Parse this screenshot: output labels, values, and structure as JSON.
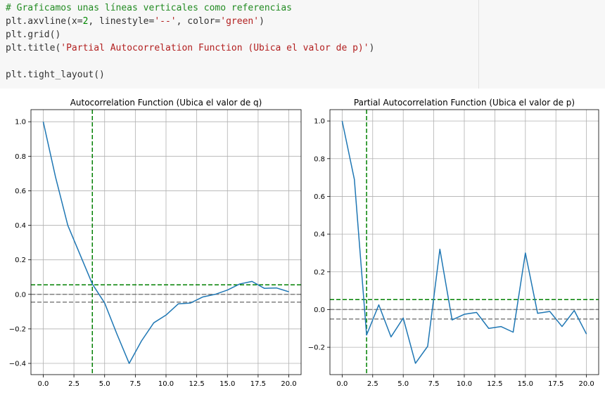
{
  "code": [
    {
      "parts": [
        {
          "t": "# Graficamos unas líneas verticales como referencias",
          "c": "c-comment"
        }
      ]
    },
    {
      "parts": [
        {
          "t": "plt.axvline(x="
        },
        {
          "t": "2",
          "c": "c-num"
        },
        {
          "t": ", linestyle="
        },
        {
          "t": "'--'",
          "c": "c-str"
        },
        {
          "t": ", color="
        },
        {
          "t": "'green'",
          "c": "c-str"
        },
        {
          "t": ")"
        }
      ]
    },
    {
      "parts": [
        {
          "t": "plt.grid()"
        }
      ]
    },
    {
      "parts": [
        {
          "t": "plt.title("
        },
        {
          "t": "'Partial Autocorrelation Function (Ubica el valor de p)'",
          "c": "c-str"
        },
        {
          "t": ")"
        }
      ]
    },
    {
      "parts": [
        {
          "t": ""
        }
      ]
    },
    {
      "parts": [
        {
          "t": "plt.tight_layout()"
        }
      ]
    }
  ],
  "chart_data": [
    {
      "type": "line",
      "title": "Autocorrelation Function (Ubica el valor de q)",
      "x": [
        0,
        1,
        2,
        3,
        4,
        5,
        6,
        7,
        8,
        9,
        10,
        11,
        12,
        13,
        14,
        15,
        16,
        17,
        18,
        19,
        20
      ],
      "series": [
        {
          "values": [
            1.0,
            0.68,
            0.4,
            0.23,
            0.06,
            -0.05,
            -0.23,
            -0.4,
            -0.27,
            -0.165,
            -0.12,
            -0.055,
            -0.05,
            -0.015,
            0.0,
            0.025,
            0.06,
            0.075,
            0.035,
            0.037,
            0.015
          ],
          "color": "#1f77b4"
        }
      ],
      "hlines": [
        {
          "y": 0.0,
          "color": "#808080",
          "style": "dashed"
        },
        {
          "y": -0.045,
          "color": "#808080",
          "style": "dashed"
        },
        {
          "y": 0.055,
          "color": "#008000",
          "style": "dashed"
        }
      ],
      "vline": {
        "x": 4,
        "color": "#008000",
        "style": "dashed"
      },
      "xlim": [
        -1,
        21
      ],
      "ylim": [
        -0.465,
        1.07
      ],
      "xticks": [
        0,
        2.5,
        5,
        7.5,
        10,
        12.5,
        15,
        17.5,
        20
      ],
      "xtick_labels": [
        "0.0",
        "2.5",
        "5.0",
        "7.5",
        "10.0",
        "12.5",
        "15.0",
        "17.5",
        "20.0"
      ],
      "yticks": [
        -0.4,
        -0.2,
        0.0,
        0.2,
        0.4,
        0.6,
        0.8,
        1.0
      ],
      "ytick_labels": [
        "−0.4",
        "−0.2",
        "0.0",
        "0.2",
        "0.4",
        "0.6",
        "0.8",
        "1.0"
      ],
      "grid": true
    },
    {
      "type": "line",
      "title": "Partial Autocorrelation Function (Ubica el valor de p)",
      "x": [
        0,
        1,
        2,
        3,
        4,
        5,
        6,
        7,
        8,
        9,
        10,
        11,
        12,
        13,
        14,
        15,
        16,
        17,
        18,
        19,
        20
      ],
      "series": [
        {
          "values": [
            1.0,
            0.69,
            -0.135,
            0.025,
            -0.145,
            -0.045,
            -0.285,
            -0.195,
            0.32,
            -0.055,
            -0.025,
            -0.015,
            -0.1,
            -0.09,
            -0.12,
            0.3,
            -0.02,
            -0.01,
            -0.09,
            -0.005,
            -0.13
          ],
          "color": "#1f77b4"
        }
      ],
      "hlines": [
        {
          "y": 0.0,
          "color": "#808080",
          "style": "dashed"
        },
        {
          "y": -0.05,
          "color": "#808080",
          "style": "dashed"
        },
        {
          "y": 0.053,
          "color": "#008000",
          "style": "dashed"
        }
      ],
      "vline": {
        "x": 2,
        "color": "#008000",
        "style": "dashed"
      },
      "xlim": [
        -1,
        21
      ],
      "ylim": [
        -0.345,
        1.06
      ],
      "xticks": [
        0,
        2.5,
        5,
        7.5,
        10,
        12.5,
        15,
        17.5,
        20
      ],
      "xtick_labels": [
        "0.0",
        "2.5",
        "5.0",
        "7.5",
        "10.0",
        "12.5",
        "15.0",
        "17.5",
        "20.0"
      ],
      "yticks": [
        -0.2,
        0.0,
        0.2,
        0.4,
        0.6,
        0.8,
        1.0
      ],
      "ytick_labels": [
        "−0.2",
        "0.0",
        "0.2",
        "0.4",
        "0.6",
        "0.8",
        "1.0"
      ],
      "grid": true
    }
  ]
}
